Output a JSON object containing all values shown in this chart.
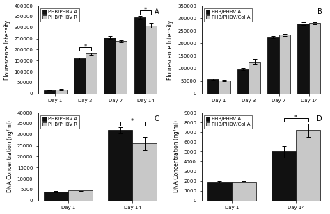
{
  "panel_A": {
    "title": "A",
    "categories": [
      "Day 1",
      "Day 3",
      "Day 7",
      "Day 14"
    ],
    "series1_label": "PHB/PHBV A",
    "series2_label": "PHB/PHBV R",
    "series1_values": [
      15000,
      160000,
      255000,
      345000
    ],
    "series2_values": [
      18000,
      182000,
      238000,
      310000
    ],
    "series1_errors": [
      1000,
      5000,
      5000,
      8000
    ],
    "series2_errors": [
      2000,
      5000,
      5000,
      10000
    ],
    "ylabel": "Flourescence Intensity",
    "ylim": [
      0,
      400000
    ],
    "ytick_vals": [
      0,
      50000,
      100000,
      150000,
      200000,
      250000,
      300000,
      350000,
      400000
    ],
    "ytick_labels": [
      "0",
      "50000",
      "100000",
      "150000",
      "200000",
      "250000",
      "300000",
      "350000",
      "400000"
    ],
    "sig_day3": true,
    "sig_day14": true
  },
  "panel_B": {
    "title": "B",
    "categories": [
      "Day 1",
      "Day 3",
      "Day 7",
      "Day 14"
    ],
    "series1_label": "PHB/PHBV A",
    "series2_label": "PHB/PHBV/Col A",
    "series1_values": [
      58000,
      97000,
      225000,
      278000
    ],
    "series2_values": [
      52000,
      127000,
      233000,
      280000
    ],
    "series1_errors": [
      2000,
      5000,
      5000,
      5000
    ],
    "series2_errors": [
      2000,
      10000,
      5000,
      5000
    ],
    "ylabel": "Flourescence Intensity",
    "ylim": [
      0,
      350000
    ],
    "ytick_vals": [
      0,
      50000,
      100000,
      150000,
      200000,
      250000,
      300000,
      350000
    ],
    "ytick_labels": [
      "0",
      "50000",
      "100000",
      "150000",
      "200000",
      "250000",
      "300000",
      "350000"
    ],
    "sig_day3": false,
    "sig_day14": false
  },
  "panel_C": {
    "title": "C",
    "categories": [
      "Day 1",
      "Day 14"
    ],
    "series1_label": "PHB/PHBV A",
    "series2_label": "PHB/PHBV R",
    "series1_values": [
      4000,
      32000
    ],
    "series2_values": [
      4800,
      26000
    ],
    "series1_errors": [
      300,
      1500
    ],
    "series2_errors": [
      300,
      3000
    ],
    "ylabel": "DNA Concentration (ng/ml)",
    "ylim": [
      0,
      40000
    ],
    "ytick_vals": [
      0,
      5000,
      10000,
      15000,
      20000,
      25000,
      30000,
      35000,
      40000
    ],
    "ytick_labels": [
      "0",
      "5000",
      "10000",
      "15000",
      "20000",
      "25000",
      "30000",
      "35000",
      "40000"
    ],
    "sig_day3": false,
    "sig_day14": true
  },
  "panel_D": {
    "title": "D",
    "categories": [
      "Day 1",
      "Day 14"
    ],
    "series1_label": "PHB/PHBV A",
    "series2_label": "PHB/PHBV/Col A",
    "series1_values": [
      1900,
      5000
    ],
    "series2_values": [
      1900,
      7200
    ],
    "series1_errors": [
      100,
      600
    ],
    "series2_errors": [
      100,
      700
    ],
    "ylabel": "DNA Concentration (ng/ml)",
    "ylim": [
      0,
      9000
    ],
    "ytick_vals": [
      0,
      1000,
      2000,
      3000,
      4000,
      5000,
      6000,
      7000,
      8000,
      9000
    ],
    "ytick_labels": [
      "0",
      "1000",
      "2000",
      "3000",
      "4000",
      "5000",
      "6000",
      "7000",
      "8000",
      "9000"
    ],
    "sig_day3": false,
    "sig_day14": true
  },
  "bar_color1": "#111111",
  "bar_color2": "#c8c8c8",
  "background_color": "#ffffff",
  "fontsize": 5.5,
  "tick_fontsize": 5,
  "legend_fontsize": 5,
  "bar_width": 0.38
}
